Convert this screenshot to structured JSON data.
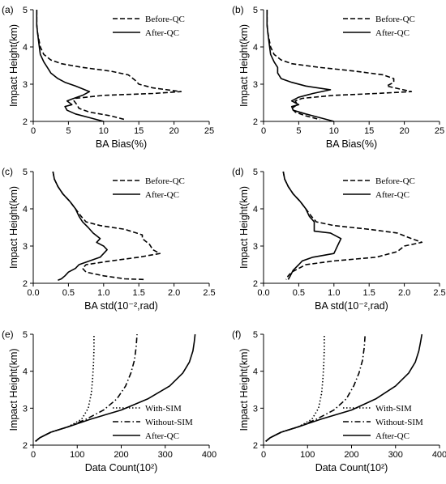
{
  "chart_data": [
    {
      "panel": "(a)",
      "type": "line",
      "xlabel": "BA Bias(%)",
      "ylabel": "Impact Height(km)",
      "xlim": [
        0,
        25
      ],
      "ylim": [
        2,
        5
      ],
      "xticks": [
        "0",
        "5",
        "10",
        "15",
        "20",
        "25"
      ],
      "yticks": [
        "2",
        "3",
        "4",
        "5"
      ],
      "legend_position": "top-right",
      "series": [
        {
          "name": "Before-QC",
          "style": "dashed",
          "x": [
            0.5,
            0.5,
            0.6,
            0.8,
            1.0,
            1.5,
            2.5,
            4,
            7,
            11,
            13.5,
            14.5,
            15,
            17,
            21,
            17,
            10,
            6,
            5.8,
            6.2,
            6.5,
            8,
            11,
            13
          ],
          "y": [
            5.0,
            4.6,
            4.4,
            4.2,
            4.0,
            3.8,
            3.65,
            3.55,
            3.45,
            3.35,
            3.25,
            3.1,
            3.0,
            2.9,
            2.8,
            2.75,
            2.7,
            2.62,
            2.55,
            2.45,
            2.35,
            2.25,
            2.15,
            2.05
          ]
        },
        {
          "name": "After-QC",
          "style": "solid",
          "x": [
            0.5,
            0.5,
            0.6,
            0.8,
            1.0,
            1.5,
            2.0,
            2.5,
            3.5,
            4.5,
            6,
            8,
            7,
            5.5,
            4.8,
            5.5,
            4.5,
            4.8,
            6,
            8,
            10
          ],
          "y": [
            5.0,
            4.6,
            4.4,
            4.1,
            3.8,
            3.6,
            3.45,
            3.3,
            3.15,
            3.05,
            2.95,
            2.8,
            2.7,
            2.6,
            2.55,
            2.45,
            2.4,
            2.3,
            2.2,
            2.1,
            2.0
          ]
        }
      ]
    },
    {
      "panel": "(b)",
      "type": "line",
      "xlabel": "BA Bias(%)",
      "ylabel": "Impact Height(km)",
      "xlim": [
        0,
        25
      ],
      "ylim": [
        2,
        5
      ],
      "xticks": [
        "0",
        "5",
        "10",
        "15",
        "20",
        "25"
      ],
      "yticks": [
        "2",
        "3",
        "4",
        "5"
      ],
      "legend_position": "top-right",
      "series": [
        {
          "name": "Before-QC",
          "style": "dashed",
          "x": [
            0.5,
            0.5,
            0.6,
            0.8,
            1.0,
            1.5,
            2.5,
            4,
            8,
            13,
            17,
            18.5,
            18.5,
            17.5,
            21,
            16,
            10,
            5.5,
            4.5,
            4.8,
            4,
            4.5,
            6,
            8
          ],
          "y": [
            5.0,
            4.6,
            4.4,
            4.2,
            4.0,
            3.8,
            3.65,
            3.55,
            3.45,
            3.35,
            3.25,
            3.15,
            3.05,
            2.95,
            2.8,
            2.75,
            2.7,
            2.62,
            2.55,
            2.45,
            2.35,
            2.25,
            2.15,
            2.05
          ]
        },
        {
          "name": "After-QC",
          "style": "solid",
          "x": [
            0.5,
            0.5,
            0.6,
            0.8,
            1.0,
            1.5,
            2.0,
            2.0,
            2.5,
            4,
            6,
            9.5,
            7,
            5,
            4,
            5,
            4,
            4.2,
            6,
            8,
            10
          ],
          "y": [
            5.0,
            4.6,
            4.4,
            4.1,
            3.8,
            3.6,
            3.45,
            3.3,
            3.15,
            3.05,
            2.95,
            2.85,
            2.75,
            2.65,
            2.55,
            2.45,
            2.4,
            2.3,
            2.2,
            2.1,
            2.0
          ]
        }
      ]
    },
    {
      "panel": "(c)",
      "type": "line",
      "xlabel": "BA std(10⁻²,rad)",
      "ylabel": "Impact Height(km)",
      "xlim": [
        0,
        2.5
      ],
      "ylim": [
        2,
        5
      ],
      "xticks": [
        "0.0",
        "0.5",
        "1.0",
        "1.5",
        "2.0",
        "2.5"
      ],
      "yticks": [
        "2",
        "3",
        "4",
        "5"
      ],
      "legend_position": "top-right",
      "series": [
        {
          "name": "Before-QC",
          "style": "dashed",
          "x": [
            0.28,
            0.3,
            0.35,
            0.42,
            0.52,
            0.6,
            0.68,
            0.75,
            0.95,
            1.3,
            1.55,
            1.55,
            1.65,
            1.7,
            1.8,
            1.5,
            1.1,
            0.75,
            0.7,
            0.75,
            1.0,
            1.3,
            1.6
          ],
          "y": [
            5.0,
            4.8,
            4.6,
            4.4,
            4.2,
            4.0,
            3.8,
            3.65,
            3.55,
            3.45,
            3.3,
            3.2,
            3.05,
            2.9,
            2.8,
            2.7,
            2.6,
            2.5,
            2.4,
            2.3,
            2.2,
            2.12,
            2.1
          ]
        },
        {
          "name": "After-QC",
          "style": "solid",
          "x": [
            0.28,
            0.3,
            0.35,
            0.42,
            0.52,
            0.6,
            0.65,
            0.7,
            0.78,
            0.85,
            0.95,
            0.9,
            1.0,
            1.05,
            1.0,
            0.95,
            0.8,
            0.65,
            0.6,
            0.5,
            0.45,
            0.4,
            0.35
          ],
          "y": [
            5.0,
            4.8,
            4.6,
            4.4,
            4.2,
            4.0,
            3.8,
            3.65,
            3.5,
            3.35,
            3.2,
            3.1,
            3.0,
            2.9,
            2.8,
            2.7,
            2.6,
            2.5,
            2.4,
            2.3,
            2.2,
            2.12,
            2.08
          ]
        }
      ]
    },
    {
      "panel": "(d)",
      "type": "line",
      "xlabel": "BA std(10⁻²,rad)",
      "ylabel": "Impact Height(km)",
      "xlim": [
        0,
        2.5
      ],
      "ylim": [
        2,
        5
      ],
      "xticks": [
        "0.0",
        "0.5",
        "1.0",
        "1.5",
        "2.0",
        "2.5"
      ],
      "yticks": [
        "2",
        "3",
        "4",
        "5"
      ],
      "legend_position": "top-right",
      "series": [
        {
          "name": "Before-QC",
          "style": "dashed",
          "x": [
            0.28,
            0.3,
            0.35,
            0.42,
            0.52,
            0.6,
            0.68,
            0.75,
            1.0,
            1.5,
            1.9,
            2.1,
            2.25,
            2.0,
            1.9,
            1.6,
            1.0,
            0.6,
            0.5,
            0.4,
            0.35,
            0.32
          ],
          "y": [
            5.0,
            4.8,
            4.6,
            4.4,
            4.2,
            4.0,
            3.8,
            3.65,
            3.55,
            3.45,
            3.35,
            3.2,
            3.1,
            3.0,
            2.85,
            2.7,
            2.6,
            2.5,
            2.4,
            2.3,
            2.2,
            2.1
          ]
        },
        {
          "name": "After-QC",
          "style": "solid",
          "x": [
            0.28,
            0.3,
            0.35,
            0.42,
            0.52,
            0.6,
            0.65,
            0.72,
            0.72,
            0.95,
            1.1,
            1.05,
            1.0,
            0.7,
            0.55,
            0.5,
            0.42,
            0.38,
            0.35
          ],
          "y": [
            5.0,
            4.8,
            4.6,
            4.4,
            4.2,
            4.0,
            3.8,
            3.65,
            3.4,
            3.35,
            3.2,
            3.0,
            2.8,
            2.7,
            2.6,
            2.5,
            2.35,
            2.2,
            2.1
          ]
        }
      ]
    },
    {
      "panel": "(e)",
      "type": "line",
      "xlabel": "Data Count(10²)",
      "ylabel": "Impact Height(km)",
      "xlim": [
        0,
        400
      ],
      "ylim": [
        2,
        5
      ],
      "xticks": [
        "0",
        "100",
        "200",
        "300",
        "400"
      ],
      "yticks": [
        "2",
        "3",
        "4",
        "5"
      ],
      "legend_position": "bottom-right",
      "series": [
        {
          "name": "With-SIM",
          "style": "dotted",
          "x": [
            5,
            15,
            40,
            80,
            110,
            125,
            132,
            135,
            137,
            138,
            138
          ],
          "y": [
            2.1,
            2.2,
            2.35,
            2.5,
            2.7,
            3.0,
            3.4,
            3.8,
            4.2,
            4.6,
            5.0
          ]
        },
        {
          "name": "Without-SIM",
          "style": "dashdot",
          "x": [
            5,
            15,
            40,
            80,
            120,
            160,
            190,
            210,
            222,
            230,
            234,
            236
          ],
          "y": [
            2.1,
            2.2,
            2.35,
            2.5,
            2.7,
            2.95,
            3.25,
            3.6,
            3.95,
            4.3,
            4.65,
            5.0
          ]
        },
        {
          "name": "After-QC",
          "style": "solid",
          "x": [
            5,
            15,
            40,
            80,
            130,
            200,
            260,
            310,
            340,
            355,
            363,
            366,
            368
          ],
          "y": [
            2.1,
            2.2,
            2.35,
            2.5,
            2.7,
            2.95,
            3.25,
            3.6,
            3.95,
            4.25,
            4.55,
            4.8,
            5.0
          ]
        }
      ]
    },
    {
      "panel": "(f)",
      "type": "line",
      "xlabel": "Data Count(10²)",
      "ylabel": "Impact Height(km)",
      "xlim": [
        0,
        400
      ],
      "ylim": [
        2,
        5
      ],
      "xticks": [
        "0",
        "100",
        "200",
        "300",
        "400"
      ],
      "yticks": [
        "2",
        "3",
        "4",
        "5"
      ],
      "legend_position": "bottom-right",
      "series": [
        {
          "name": "With-SIM",
          "style": "dotted",
          "x": [
            5,
            15,
            40,
            80,
            110,
            125,
            132,
            135,
            137,
            138,
            138
          ],
          "y": [
            2.1,
            2.2,
            2.35,
            2.5,
            2.7,
            3.0,
            3.4,
            3.8,
            4.2,
            4.6,
            5.0
          ]
        },
        {
          "name": "Without-SIM",
          "style": "dashdot",
          "x": [
            5,
            15,
            40,
            80,
            120,
            160,
            188,
            205,
            217,
            225,
            229,
            231
          ],
          "y": [
            2.1,
            2.2,
            2.35,
            2.5,
            2.7,
            2.95,
            3.25,
            3.6,
            3.95,
            4.3,
            4.65,
            5.0
          ]
        },
        {
          "name": "After-QC",
          "style": "solid",
          "x": [
            5,
            15,
            40,
            80,
            130,
            200,
            255,
            300,
            330,
            345,
            353,
            357,
            360
          ],
          "y": [
            2.1,
            2.2,
            2.35,
            2.5,
            2.7,
            2.95,
            3.25,
            3.6,
            3.95,
            4.25,
            4.55,
            4.8,
            5.0
          ]
        }
      ]
    }
  ]
}
